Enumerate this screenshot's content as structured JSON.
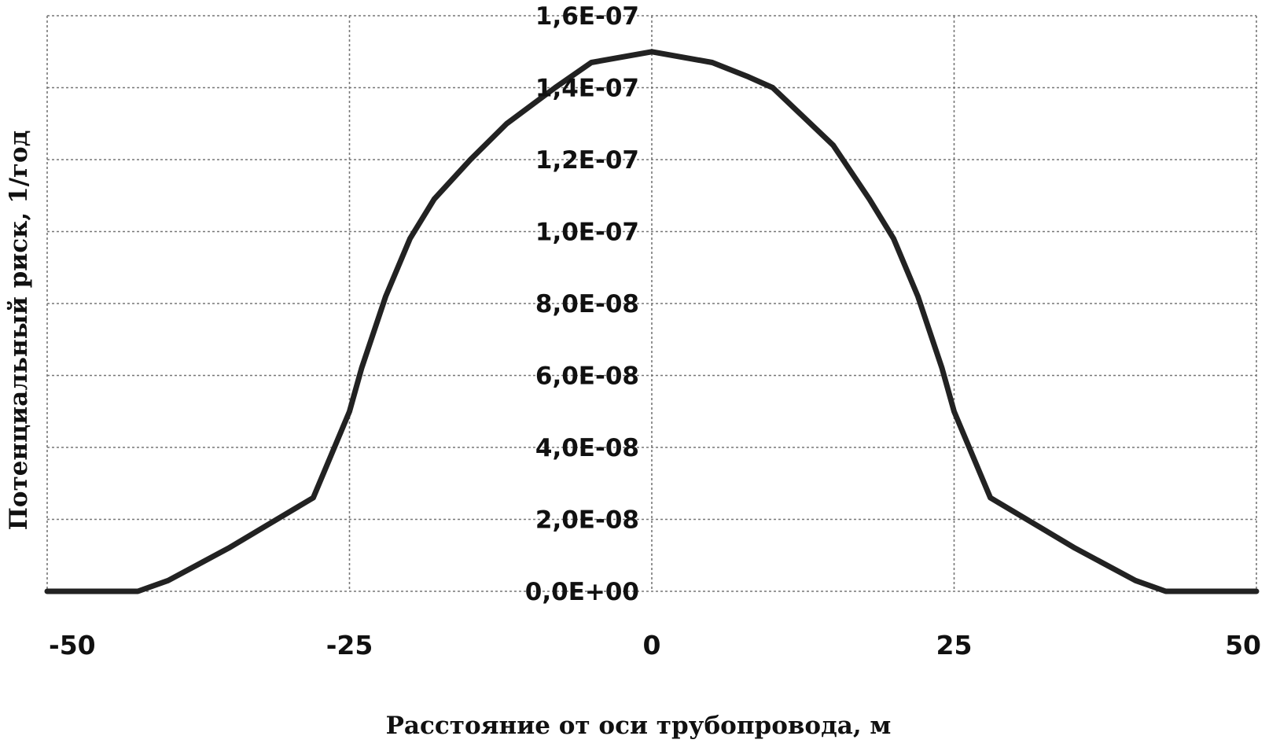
{
  "chart_data": {
    "type": "line",
    "title": "",
    "xlabel": "Расстояние от оси трубопровода, м",
    "ylabel": "Потенциальный риск, 1/год",
    "xlim": [
      -50,
      50
    ],
    "ylim": [
      0,
      1.6e-07
    ],
    "x_ticks": [
      -50,
      -25,
      0,
      25,
      50
    ],
    "x_tick_labels": [
      "-50",
      "-25",
      "0",
      "25",
      "50"
    ],
    "y_ticks": [
      0,
      2e-08,
      4e-08,
      6e-08,
      8e-08,
      1e-07,
      1.2e-07,
      1.4e-07,
      1.6e-07
    ],
    "y_tick_labels": [
      "0,0E+00",
      "2,0E-08",
      "4,0E-08",
      "6,0E-08",
      "8,0E-08",
      "1,0E-07",
      "1,2E-07",
      "1,4E-07",
      "1,6E-07"
    ],
    "grid": true,
    "legend": "none",
    "series": [
      {
        "color": "#222222",
        "x": [
          -50,
          -42.5,
          -40,
          -35,
          -32,
          -28,
          -25,
          -24,
          -22,
          -20,
          -18,
          -15,
          -12,
          -8,
          -5,
          0,
          5,
          8,
          10,
          15,
          18,
          20,
          22,
          24,
          25,
          28,
          32,
          35,
          40,
          42.5,
          50
        ],
        "y": [
          0,
          0,
          3e-09,
          1.2e-08,
          1.8e-08,
          2.6e-08,
          5e-08,
          6.2e-08,
          8.2e-08,
          9.8e-08,
          1.09e-07,
          1.2e-07,
          1.3e-07,
          1.4e-07,
          1.47e-07,
          1.5e-07,
          1.47e-07,
          1.43e-07,
          1.4e-07,
          1.24e-07,
          1.09e-07,
          9.8e-08,
          8.2e-08,
          6.2e-08,
          5e-08,
          2.6e-08,
          1.8e-08,
          1.2e-08,
          3e-09,
          0,
          0
        ]
      }
    ]
  }
}
